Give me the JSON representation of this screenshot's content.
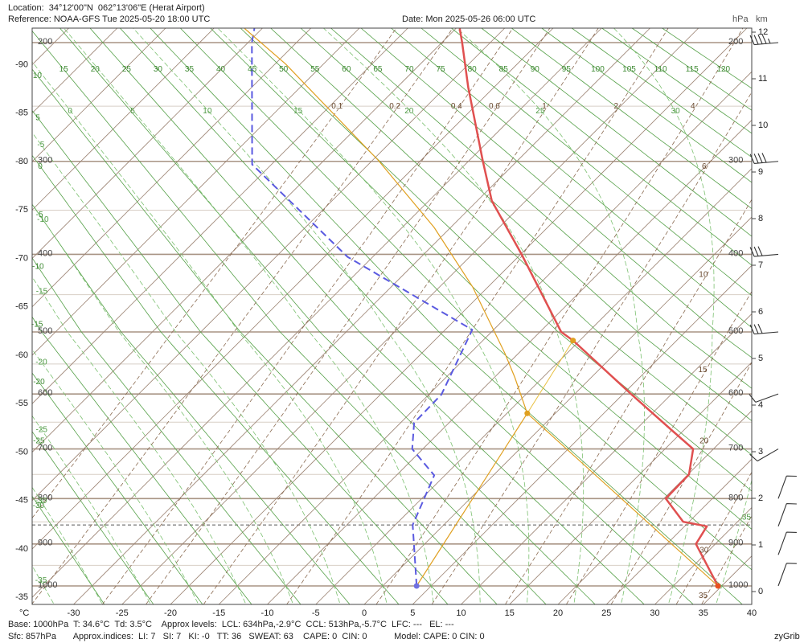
{
  "chart_data": {
    "type": "skewt",
    "title": "Location:  34°12'00\"N  062°13'06\"E (Herat Airport)",
    "subtitle": "Reference: NOAA-GFS Tue 2025-05-20 18:00 UTC",
    "date": "Date: Mon 2025-05-26 06:00 UTC",
    "x_label": "°C",
    "y_label": "hPa",
    "y2_label": "km",
    "xticks": [
      -30,
      -25,
      -20,
      -15,
      -10,
      -5,
      0,
      5,
      10,
      15,
      20,
      25,
      30,
      35,
      40
    ],
    "isotherm_ticks": [
      -90,
      -85,
      -80,
      -75,
      -70,
      -65,
      -60,
      -55,
      -50,
      -45,
      -40,
      -35
    ],
    "pressure_ticks": [
      1000,
      900,
      800,
      700,
      600,
      500,
      400,
      300,
      200
    ],
    "pressure_minor_ticks": [
      950,
      850,
      750,
      650,
      550,
      450,
      350,
      250
    ],
    "y2lim": [
      0,
      12
    ],
    "y2ticks": [
      0,
      1,
      2,
      3,
      4,
      5,
      6,
      7,
      8,
      9,
      10,
      11,
      12
    ],
    "dry_adiabats": [
      -30,
      -25,
      -20,
      -15,
      -10,
      -5,
      0,
      5,
      10,
      15,
      20,
      25,
      30,
      35,
      40,
      45,
      50,
      55,
      60,
      65,
      70,
      75,
      80,
      85,
      90,
      95,
      100,
      105,
      110,
      115,
      120
    ],
    "moist_adiabats": [
      -35,
      -30,
      -25,
      -20,
      -15,
      -10,
      -5,
      0,
      5,
      10,
      15,
      20,
      25,
      30,
      35
    ],
    "mixing_ratios": [
      0.1,
      0.2,
      0.4,
      0.6,
      1,
      2,
      4,
      6,
      10,
      15,
      20,
      30,
      35
    ],
    "surface_pressure": 857,
    "series": [
      {
        "color": "#e05050",
        "dash": false,
        "width": 2.5,
        "pressure": [
          1000,
          900,
          860,
          850,
          800,
          750,
          700,
          665,
          600,
          513,
          500,
          400,
          340,
          300,
          234,
          200,
          190
        ],
        "temperature": [
          34.6,
          28.0,
          27.3,
          24.4,
          20.2,
          20.1,
          17.9,
          13.8,
          5.8,
          -5.7,
          -7.8,
          -19.9,
          -28.5,
          -33.5,
          -42.7,
          -47.9,
          -49.6
        ]
      },
      {
        "color": "#5a5ae0",
        "dash": true,
        "width": 2,
        "pressure": [
          1000,
          857,
          752,
          700,
          651,
          601,
          497,
          403,
          303,
          200,
          190
        ],
        "temperature": [
          3.5,
          -3.2,
          -6.1,
          -11.1,
          -13.6,
          -13.7,
          -17.2,
          -37.6,
          -57.0,
          -69.6,
          -70.8
        ]
      },
      {
        "color": "#e0a020",
        "dash": false,
        "width": 1.2,
        "pressure": [
          1000,
          634,
          572,
          533,
          440,
          369,
          299,
          249,
          216,
          190
        ],
        "temperature": [
          34.6,
          -2.9,
          -7.9,
          -11.4,
          -21.6,
          -31.7,
          -44.4,
          -55.6,
          -63.9,
          -71.8
        ]
      },
      {
        "color": "#e0a020",
        "dash": false,
        "width": 1.2,
        "pressure": [
          1000,
          634
        ],
        "temperature": [
          3.5,
          -2.9
        ]
      },
      {
        "color": "#e8c040",
        "dash": false,
        "width": 1,
        "pressure": [
          634,
          513
        ],
        "temperature": [
          -2.9,
          -5.7
        ]
      }
    ],
    "points": [
      {
        "pressure": 634,
        "temperature": -2.9,
        "color": "#e0a020"
      },
      {
        "pressure": 513,
        "temperature": -5.7,
        "color": "#e0a020"
      },
      {
        "pressure": 1000,
        "temperature": 34.6,
        "color": "#e85020"
      },
      {
        "pressure": 1000,
        "temperature": 3.5,
        "color": "#7070e0"
      }
    ],
    "winds": {
      "pressure": [
        1000,
        925,
        860,
        800,
        700,
        600,
        500,
        400,
        300,
        200
      ],
      "speed": [
        10,
        10,
        10,
        10,
        10,
        10,
        30,
        30,
        40,
        45
      ],
      "direction": [
        20,
        20,
        20,
        20,
        240,
        250,
        265,
        265,
        265,
        265
      ]
    }
  },
  "footer": {
    "line1": "Base: 1000hPa  T: 34.6°C  Td: 3.5°C    Approx levels:  LCL: 634hPa,-2.9°C  CCL: 513hPa,-5.7°C  LFC: ---   EL: ---",
    "line2": "Sfc: 857hPa       Approx.indices:  LI: 7   SI: 7   KI: -0   TT: 36   SWEAT: 63    CAPE: 0  CIN: 0           Model: CAPE: 0 CIN: 0",
    "credit": "zyGrib"
  }
}
